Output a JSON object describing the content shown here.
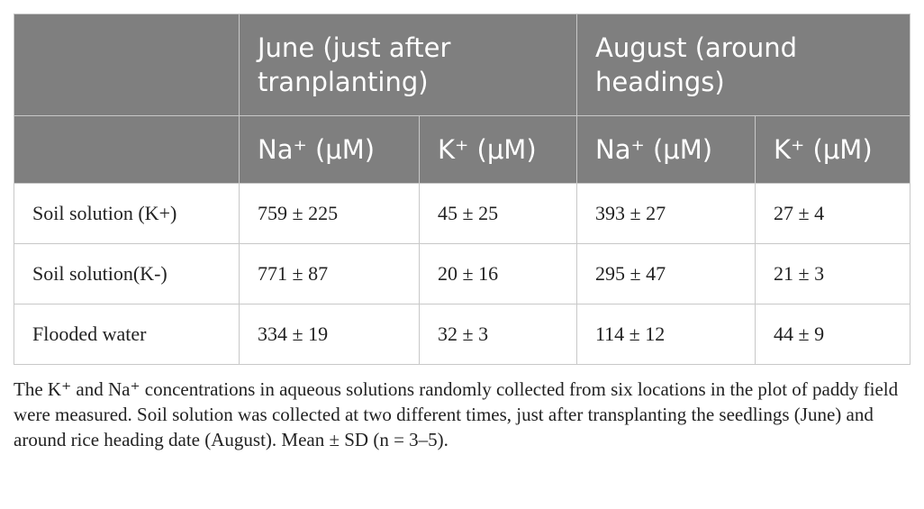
{
  "table": {
    "header": {
      "groups": [
        "June (just after tranplanting)",
        "August (around headings)"
      ],
      "columns": [
        "Na⁺ (μM)",
        "K⁺ (μM)",
        "Na⁺ (μM)",
        "K⁺ (μM)"
      ]
    },
    "rows": [
      [
        "Soil solution (K+)",
        "759 ± 225",
        "45 ± 25",
        "393 ± 27",
        "27 ± 4"
      ],
      [
        "Soil solution(K-)",
        "771 ± 87",
        "20 ± 16",
        "295 ± 47",
        "21 ± 3"
      ],
      [
        "Flooded water",
        "334 ± 19",
        "32 ± 3",
        "114 ± 12",
        "44 ± 9"
      ]
    ]
  },
  "footnote": "The K⁺ and Na⁺ concentrations in aqueous solutions randomly collected from six locations in the plot of paddy field were measured. Soil solution was collected at two different times, just after transplanting the seedlings (June) and around rice heading date (August). Mean ± SD (n = 3–5)."
}
